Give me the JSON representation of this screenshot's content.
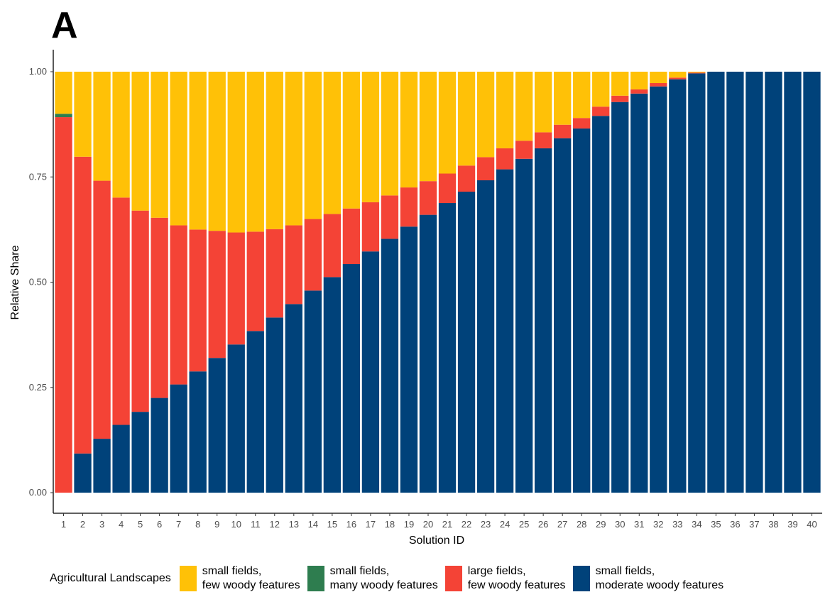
{
  "panel_label": "A",
  "chart_data": {
    "type": "bar",
    "stacked": true,
    "xlabel": "Solution ID",
    "ylabel": "Relative Share",
    "ylim": [
      0,
      1
    ],
    "yticks": [
      "0.00",
      "0.25",
      "0.50",
      "0.75",
      "1.00"
    ],
    "categories": [
      "1",
      "2",
      "3",
      "4",
      "5",
      "6",
      "7",
      "8",
      "9",
      "10",
      "11",
      "12",
      "13",
      "14",
      "15",
      "16",
      "17",
      "18",
      "19",
      "20",
      "21",
      "22",
      "23",
      "24",
      "25",
      "26",
      "27",
      "28",
      "29",
      "30",
      "31",
      "32",
      "33",
      "34",
      "35",
      "36",
      "37",
      "38",
      "39",
      "40"
    ],
    "legend_title": "Agricultural Landscapes",
    "legend_position": "bottom",
    "series": [
      {
        "name": "small fields, moderate woody features",
        "label_lines": [
          "small fields,",
          "moderate woody features"
        ],
        "color": "#00427a",
        "values": [
          0.0,
          0.093,
          0.128,
          0.161,
          0.192,
          0.225,
          0.257,
          0.288,
          0.32,
          0.352,
          0.384,
          0.416,
          0.448,
          0.48,
          0.512,
          0.543,
          0.573,
          0.603,
          0.632,
          0.66,
          0.688,
          0.715,
          0.742,
          0.768,
          0.793,
          0.818,
          0.842,
          0.865,
          0.895,
          0.928,
          0.948,
          0.965,
          0.982,
          0.996,
          1.0,
          1.0,
          1.0,
          1.0,
          1.0,
          1.0
        ]
      },
      {
        "name": "large fields, few woody features",
        "label_lines": [
          "large fields,",
          "few woody features"
        ],
        "color": "#f44336",
        "values": [
          0.892,
          0.705,
          0.613,
          0.54,
          0.478,
          0.428,
          0.378,
          0.337,
          0.302,
          0.266,
          0.236,
          0.21,
          0.187,
          0.17,
          0.15,
          0.132,
          0.117,
          0.103,
          0.093,
          0.08,
          0.07,
          0.062,
          0.055,
          0.05,
          0.043,
          0.038,
          0.032,
          0.025,
          0.022,
          0.015,
          0.01,
          0.008,
          0.004,
          0.002,
          0.0,
          0.0,
          0.0,
          0.0,
          0.0,
          0.0
        ]
      },
      {
        "name": "small fields, many woody features",
        "label_lines": [
          "small fields,",
          "many woody features"
        ],
        "color": "#2e7d4f",
        "values": [
          0.008,
          0,
          0,
          0,
          0,
          0,
          0,
          0,
          0,
          0,
          0,
          0,
          0,
          0,
          0,
          0,
          0,
          0,
          0,
          0,
          0,
          0,
          0,
          0,
          0,
          0,
          0,
          0,
          0,
          0,
          0,
          0,
          0,
          0,
          0,
          0,
          0,
          0,
          0,
          0
        ]
      },
      {
        "name": "small fields, few woody features",
        "label_lines": [
          "small fields,",
          "few woody features"
        ],
        "color": "#ffc107",
        "values": [
          0.1,
          0.202,
          0.259,
          0.299,
          0.33,
          0.347,
          0.365,
          0.375,
          0.378,
          0.382,
          0.38,
          0.374,
          0.365,
          0.35,
          0.338,
          0.325,
          0.31,
          0.294,
          0.275,
          0.26,
          0.242,
          0.223,
          0.203,
          0.182,
          0.164,
          0.144,
          0.126,
          0.11,
          0.083,
          0.057,
          0.042,
          0.027,
          0.014,
          0.002,
          0.0,
          0.0,
          0.0,
          0.0,
          0.0,
          0.0
        ]
      }
    ],
    "legend_order": [
      3,
      2,
      1,
      0
    ]
  }
}
